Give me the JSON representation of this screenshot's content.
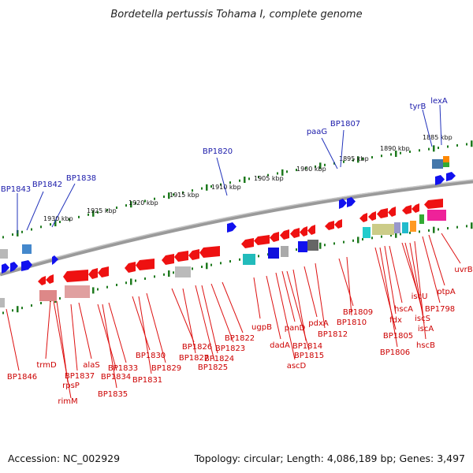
{
  "title": "Bordetella pertussis Tohama I, complete genome",
  "footer": {
    "accession": "Accession: NC_002929",
    "summary": "Topology: circular; Length: 4,086,189 bp; Genes: 3,497"
  },
  "colors": {
    "label_top": "#1a1aaa",
    "label_bottom": "#cc0000",
    "leader_top": "#2233bb",
    "leader_bottom": "#dd1111",
    "scale_tick": "#1e7a1e",
    "backbone": "#888888",
    "gene_red": "#ee1111",
    "gene_blue": "#1111ee"
  },
  "scale_labels": [
    "1930 kbp",
    "1925 kbp",
    "1920 kbp",
    "1915 kbp",
    "1910 kbp",
    "1905 kbp",
    "1900 kbp",
    "1895 kbp",
    "1890 kbp",
    "1885 kbp"
  ],
  "top_labels": [
    "BP1843",
    "BP1842",
    "BP1838",
    "BP1820",
    "paaG",
    "BP1807",
    "tyrB",
    "lexA"
  ],
  "bottom_labels": [
    "BP1846",
    "trmD",
    "rpsP",
    "rimM",
    "BP1837",
    "alaS",
    "BP1834",
    "BP1835",
    "BP1833",
    "BP1830",
    "BP1831",
    "BP1829",
    "BP1826",
    "BP1827",
    "BP1825",
    "BP1824",
    "BP1823",
    "BP1822",
    "ugpB",
    "dadA",
    "ascD",
    "panD",
    "BP1815",
    "BP1814",
    "pdxA",
    "BP1812",
    "BP1809",
    "BP1810",
    "BP1805",
    "BP1806",
    "fdx",
    "hscA",
    "iscU",
    "iscS",
    "iscA",
    "hscB",
    "BP1798",
    "ptpA",
    "uvrB"
  ]
}
